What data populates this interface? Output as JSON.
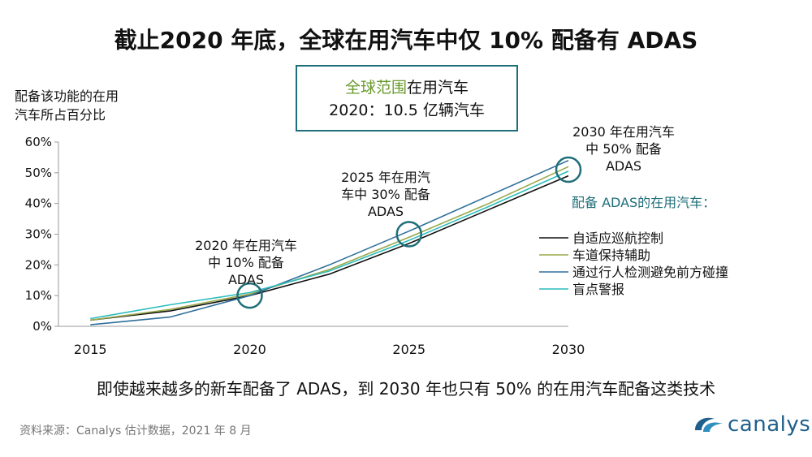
{
  "title": "截止2020 年底，全球在用汽车中仅 10% 配备有 ADAS",
  "ylabel_lines": [
    "配备该功能的在用",
    "汽车所占百分比"
  ],
  "infobox": {
    "highlight": "全球范围",
    "line1_rest": "在用汽车",
    "line2": "2020：10.5 亿辆汽车"
  },
  "subtitle": "即使越来越多的新车配备了 ADAS，到 2030 年也只有 50% 的在用汽车配备这类技术",
  "source": "资料来源：Canalys 估计数据，2021 年 8 月",
  "logo_text": "canalys",
  "colors": {
    "accent": "#1f6e79",
    "brand": "#1f5f8b"
  },
  "chart_data": {
    "type": "line",
    "x_ticks": [
      2015,
      2020,
      2025,
      2030
    ],
    "y_ticks": [
      "0%",
      "10%",
      "20%",
      "30%",
      "40%",
      "50%",
      "60%"
    ],
    "xlim": [
      2014,
      2030
    ],
    "ylim": [
      0,
      60
    ],
    "legend_title": "配备 ADAS的在用汽车：",
    "series": [
      {
        "name": "自适应巡航控制",
        "color": "#111111",
        "x": [
          2015,
          2017.5,
          2020,
          2022.5,
          2025,
          2027.5,
          2030
        ],
        "y": [
          2,
          5,
          10,
          17,
          27,
          38,
          49
        ]
      },
      {
        "name": "车道保持辅助",
        "color": "#9aa84a",
        "x": [
          2015,
          2017.5,
          2020,
          2022.5,
          2025,
          2027.5,
          2030
        ],
        "y": [
          2,
          5.5,
          10.5,
          18.5,
          29,
          40,
          52
        ]
      },
      {
        "name": "通过行人检测避免前方碰撞",
        "color": "#2f6f9a",
        "x": [
          2015,
          2017.5,
          2020,
          2022.5,
          2025,
          2027.5,
          2030
        ],
        "y": [
          0.5,
          3,
          10,
          20,
          31,
          42.5,
          54
        ]
      },
      {
        "name": "盲点警报",
        "color": "#2cbcbc",
        "x": [
          2015,
          2017.5,
          2020,
          2022.5,
          2025,
          2027.5,
          2030
        ],
        "y": [
          2.5,
          7,
          11,
          18,
          28,
          39,
          50.5
        ]
      }
    ],
    "annotations": [
      {
        "x": 2020,
        "y": 10,
        "lines": [
          "2020 年在用汽车",
          "中 10% 配备",
          "ADAS"
        ]
      },
      {
        "x": 2025,
        "y": 30,
        "lines": [
          "2025 年在用汽",
          "车中 30% 配备",
          "ADAS"
        ]
      },
      {
        "x": 2030,
        "y": 51,
        "lines": [
          "2030 年在用汽车",
          "中 50% 配备",
          "ADAS"
        ]
      }
    ]
  }
}
